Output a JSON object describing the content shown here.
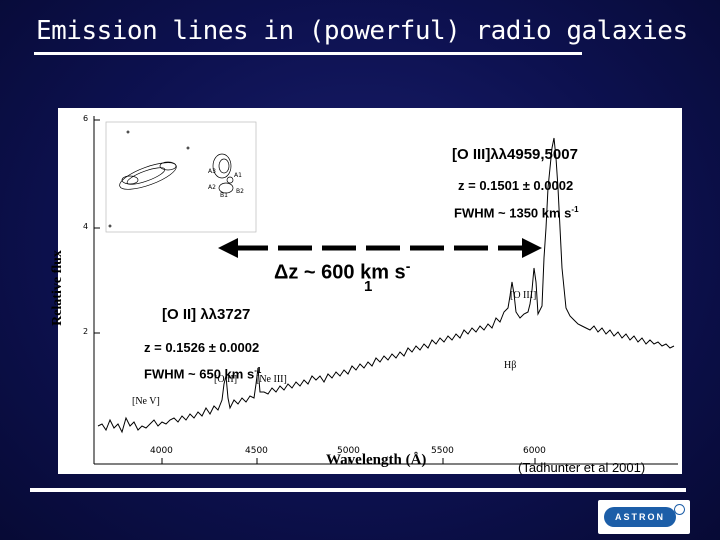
{
  "slide": {
    "title": "Emission lines in (powerful) radio galaxies",
    "credit": "(Tadhunter et al 2001)",
    "logo_text": "ASTRON"
  },
  "figure": {
    "ylabel": "Relative flux",
    "xlabel": "Wavelength (Å)",
    "yticks": [
      "6",
      "4",
      "2"
    ],
    "xticks": [
      "4000",
      "4500",
      "5000",
      "5500",
      "6000"
    ],
    "oiii_label": "[O III]λλ4959,5007",
    "oiii_z": "z = 0.1501 ± 0.0002",
    "oiii_fwhm": "FWHM ~ 1350 km s",
    "oiii_fwhm_sup": "-1",
    "delta_z": "Δz ~ 600 km s",
    "delta_z_sup": "-",
    "delta_z_tail": "1",
    "oii_label": "[O II] λλ3727",
    "oii_z": "z = 0.1526 ± 0.0002",
    "oii_fwhm": "FWHM ~ 650 km s",
    "oii_fwhm_sup": "-1",
    "line_oiii_small": "[O III]",
    "line_hb": "Hβ",
    "line_oii_small": "[O II]",
    "line_neiii": "[Ne III]",
    "line_nev": "[Ne V]",
    "inset_labels": [
      "A3",
      "A1",
      "A2",
      "B1",
      "B2"
    ]
  },
  "colors": {
    "background": "#0d1150",
    "panel": "#ffffff",
    "text": "#000000",
    "logo": "#1c5ea8"
  }
}
